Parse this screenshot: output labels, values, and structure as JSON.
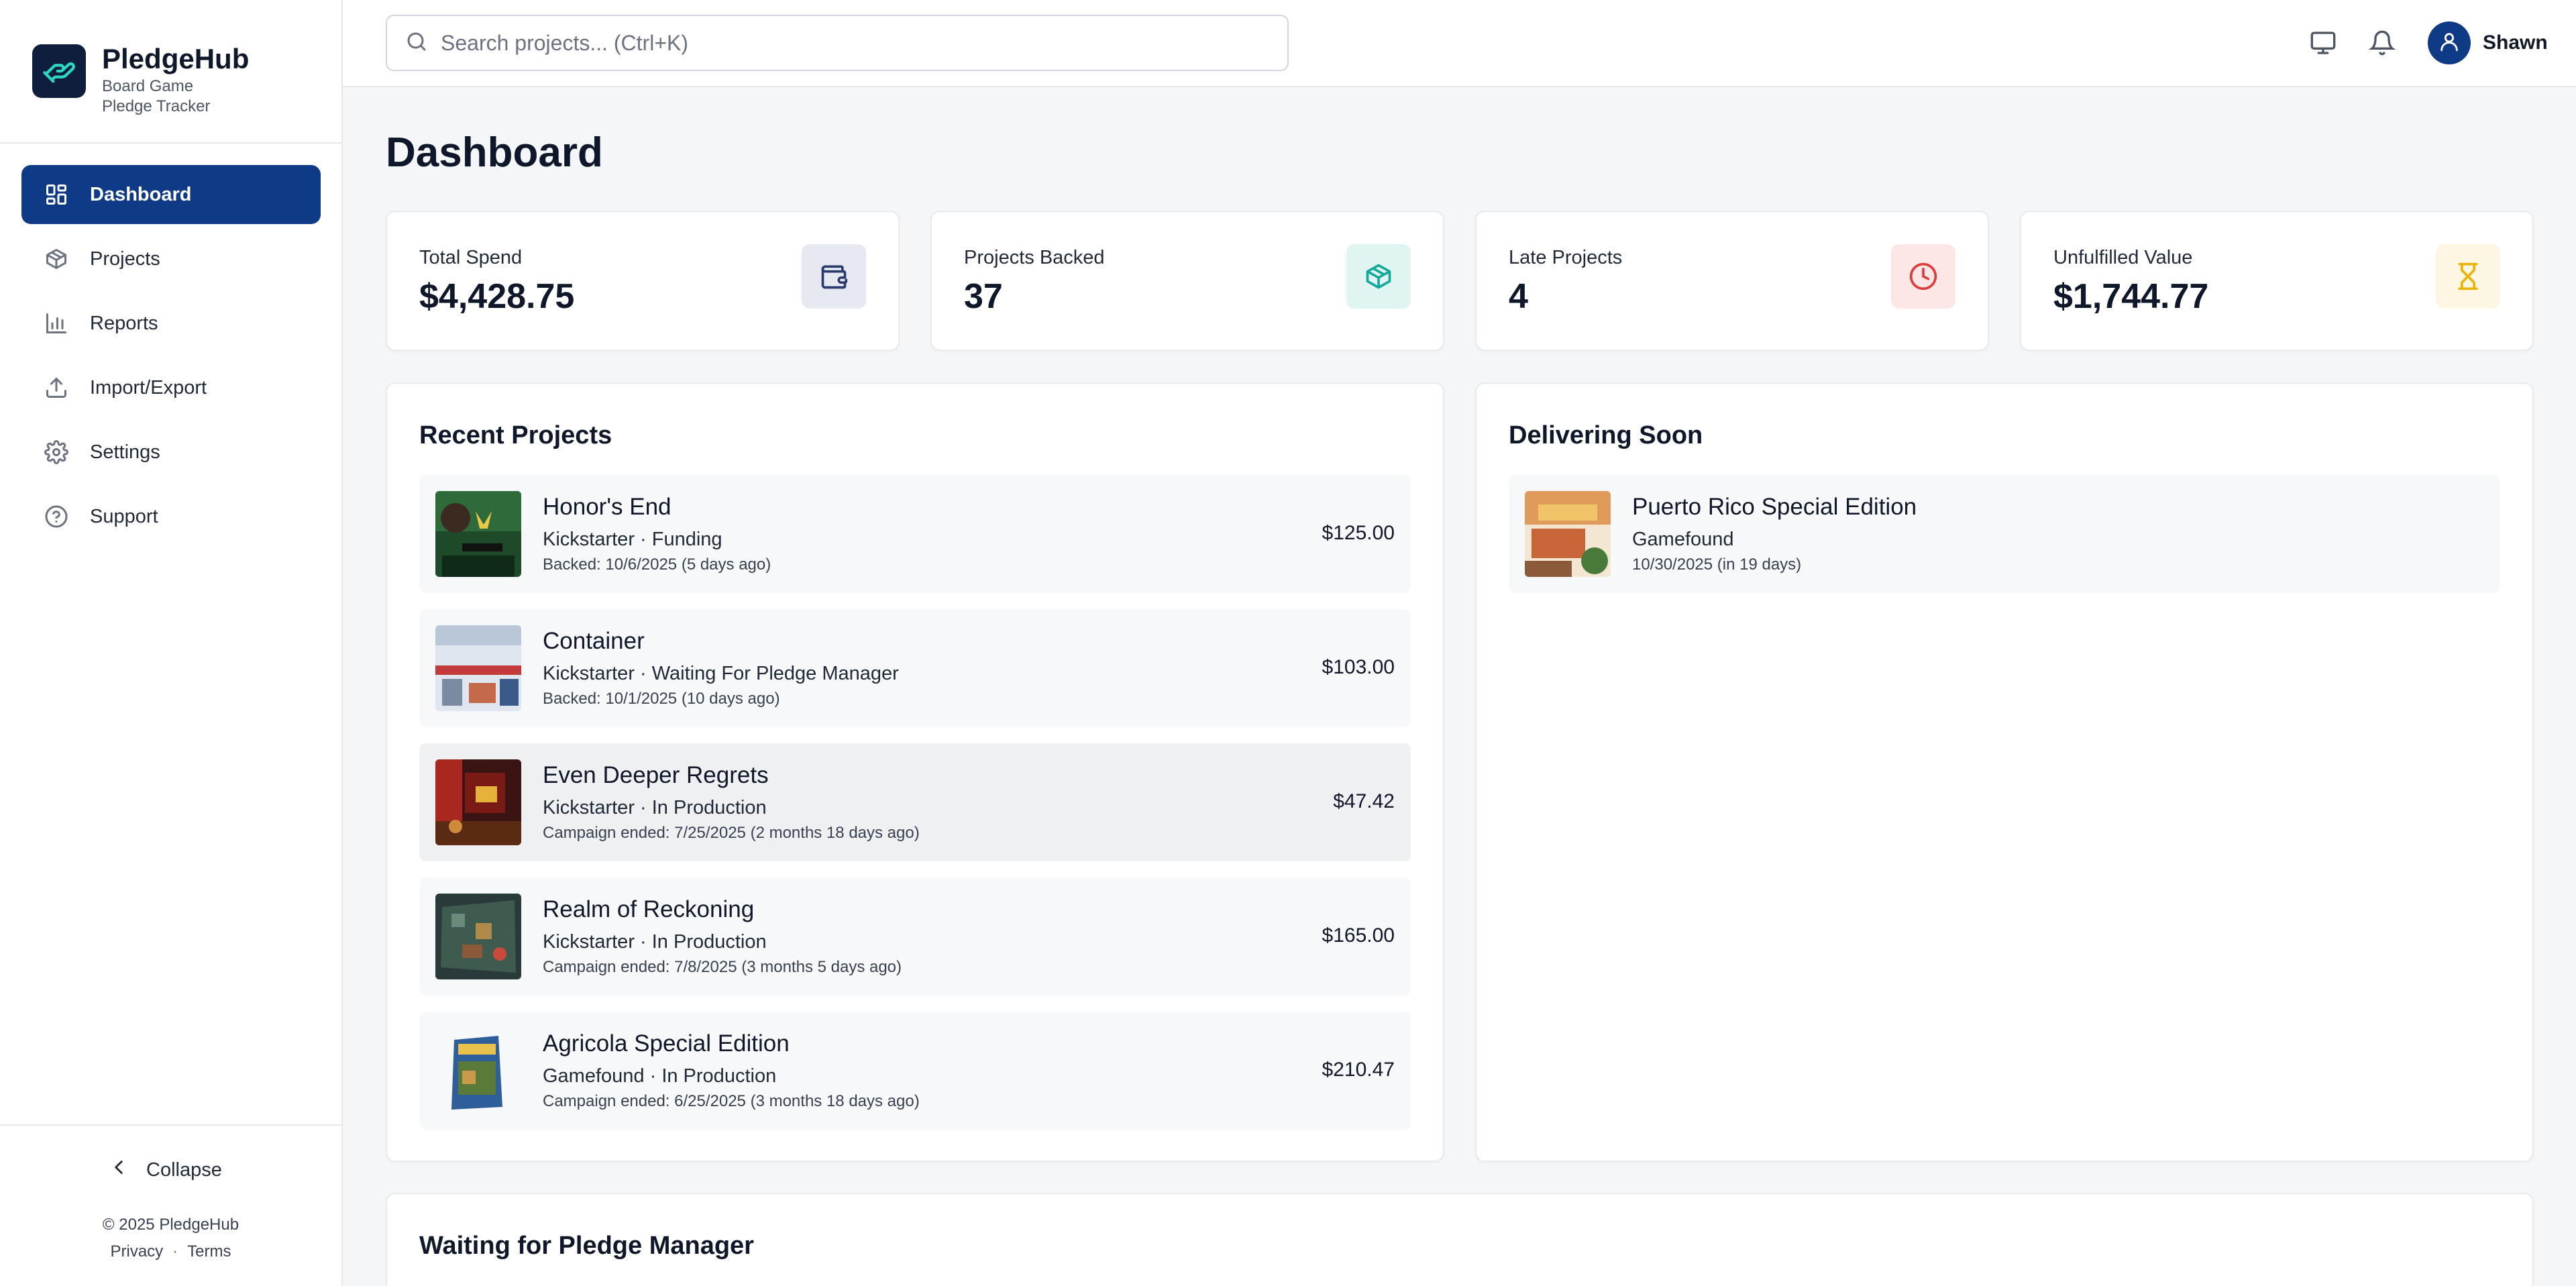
{
  "brand": {
    "name": "PledgeHub",
    "subtitle_line1": "Board Game",
    "subtitle_line2": "Pledge Tracker"
  },
  "nav": {
    "items": [
      {
        "label": "Dashboard",
        "icon": "dashboard-grid-icon",
        "active": true
      },
      {
        "label": "Projects",
        "icon": "box-icon",
        "active": false
      },
      {
        "label": "Reports",
        "icon": "bar-chart-icon",
        "active": false
      },
      {
        "label": "Import/Export",
        "icon": "upload-icon",
        "active": false
      },
      {
        "label": "Settings",
        "icon": "gear-icon",
        "active": false
      },
      {
        "label": "Support",
        "icon": "help-circle-icon",
        "active": false
      }
    ]
  },
  "sidebar_footer": {
    "collapse_label": "Collapse",
    "copyright": "© 2025 PledgeHub",
    "privacy_label": "Privacy",
    "separator": "·",
    "terms_label": "Terms"
  },
  "topbar": {
    "search_placeholder": "Search projects... (Ctrl+K)",
    "user_name": "Shawn",
    "icons": [
      "monitor-icon",
      "bell-icon",
      "user-icon"
    ]
  },
  "page": {
    "title": "Dashboard"
  },
  "stats": [
    {
      "label": "Total Spend",
      "value": "$4,428.75",
      "icon": "wallet-icon",
      "color": "#4a5a8c",
      "bg": "#e6e9f2"
    },
    {
      "label": "Projects Backed",
      "value": "37",
      "icon": "box-icon",
      "color": "#14a89a",
      "bg": "#e0f5f2"
    },
    {
      "label": "Late Projects",
      "value": "4",
      "icon": "clock-icon",
      "color": "#e03b3b",
      "bg": "#fde6e6"
    },
    {
      "label": "Unfulfilled Value",
      "value": "$1,744.77",
      "icon": "hourglass-icon",
      "color": "#eab308",
      "bg": "#fdf6e3"
    }
  ],
  "recent": {
    "title": "Recent Projects",
    "items": [
      {
        "name": "Honor's End",
        "meta": "Kickstarter · Funding",
        "date": "Backed: 10/6/2025 (5 days ago)",
        "price": "$125.00"
      },
      {
        "name": "Container",
        "meta": "Kickstarter · Waiting For Pledge Manager",
        "date": "Backed: 10/1/2025 (10 days ago)",
        "price": "$103.00"
      },
      {
        "name": "Even Deeper Regrets",
        "meta": "Kickstarter · In Production",
        "date": "Campaign ended: 7/25/2025 (2 months 18 days ago)",
        "price": "$47.42"
      },
      {
        "name": "Realm of Reckoning",
        "meta": "Kickstarter · In Production",
        "date": "Campaign ended: 7/8/2025 (3 months 5 days ago)",
        "price": "$165.00"
      },
      {
        "name": "Agricola Special Edition",
        "meta": "Gamefound · In Production",
        "date": "Campaign ended: 6/25/2025 (3 months 18 days ago)",
        "price": "$210.47"
      }
    ]
  },
  "delivering": {
    "title": "Delivering Soon",
    "items": [
      {
        "name": "Puerto Rico Special Edition",
        "meta": "Gamefound",
        "date": "10/30/2025 (in 19 days)"
      }
    ]
  },
  "waiting": {
    "title": "Waiting for Pledge Manager"
  }
}
